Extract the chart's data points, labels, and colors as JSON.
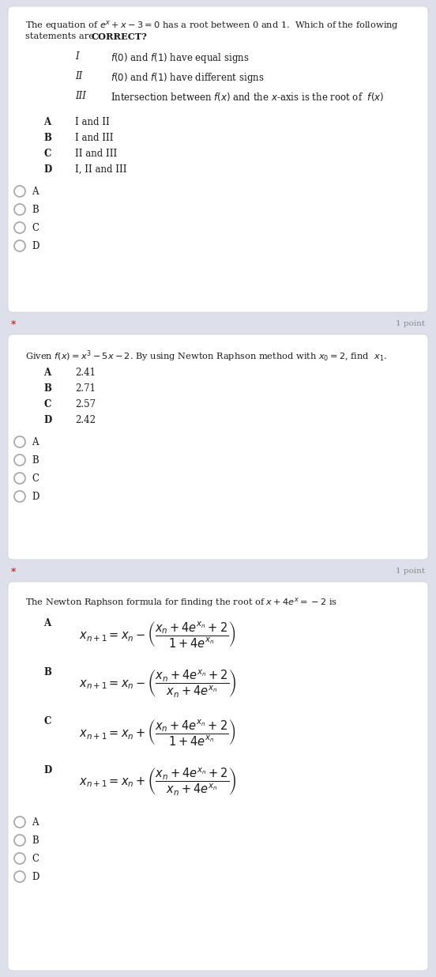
{
  "bg_color": "#dde0ea",
  "card_bg": "#ffffff",
  "text_color": "#1a1a1a",
  "red_color": "#cc0000",
  "gray_color": "#888888",
  "q1_intro1": "The equation of $e^x+x-3=0$ has a root between 0 and 1.  Which of the following",
  "q1_intro2": "statements are ",
  "q1_intro2_bold": "CORRECT?",
  "q1_statements": [
    [
      "I",
      "$f(0)$ and $f(1)$ have equal signs"
    ],
    [
      "II",
      "$f(0)$ and $f(1)$ have different signs"
    ],
    [
      "III",
      "Intersection between $f(x)$ and the $x$-axis is the root of  $f(x)$"
    ]
  ],
  "q1_choices": [
    [
      "A",
      "I and II"
    ],
    [
      "B",
      "I and III"
    ],
    [
      "C",
      "II and III"
    ],
    [
      "D",
      "I, II and III"
    ]
  ],
  "q2_intro": "Given $f(x)=x^3-5x-2$. By using Newton Raphson method with $x_0=2$, find  $x_1$.",
  "q2_choices": [
    [
      "A",
      "2.41"
    ],
    [
      "B",
      "2.71"
    ],
    [
      "C",
      "2.57"
    ],
    [
      "D",
      "2.42"
    ]
  ],
  "q3_intro": "The Newton Raphson formula for finding the root of $x+4e^x=-2$ is",
  "q3_choices": [
    [
      "A",
      "$x_{n+1}=x_n-\\left(\\dfrac{x_n+4e^{x_n}+2}{1+4e^{x_n}}\\right)$"
    ],
    [
      "B",
      "$x_{n+1}=x_n-\\left(\\dfrac{x_n+4e^{x_n}+2}{x_n+4e^{x_n}}\\right)$"
    ],
    [
      "C",
      "$x_{n+1}=x_n+\\left(\\dfrac{x_n+4e^{x_n}+2}{1+4e^{x_n}}\\right)$"
    ],
    [
      "D",
      "$x_{n+1}=x_n+\\left(\\dfrac{x_n+4e^{x_n}+2}{x_n+4e^{x_n}}\\right)$"
    ]
  ],
  "radio_labels": [
    "A",
    "B",
    "C",
    "D"
  ]
}
